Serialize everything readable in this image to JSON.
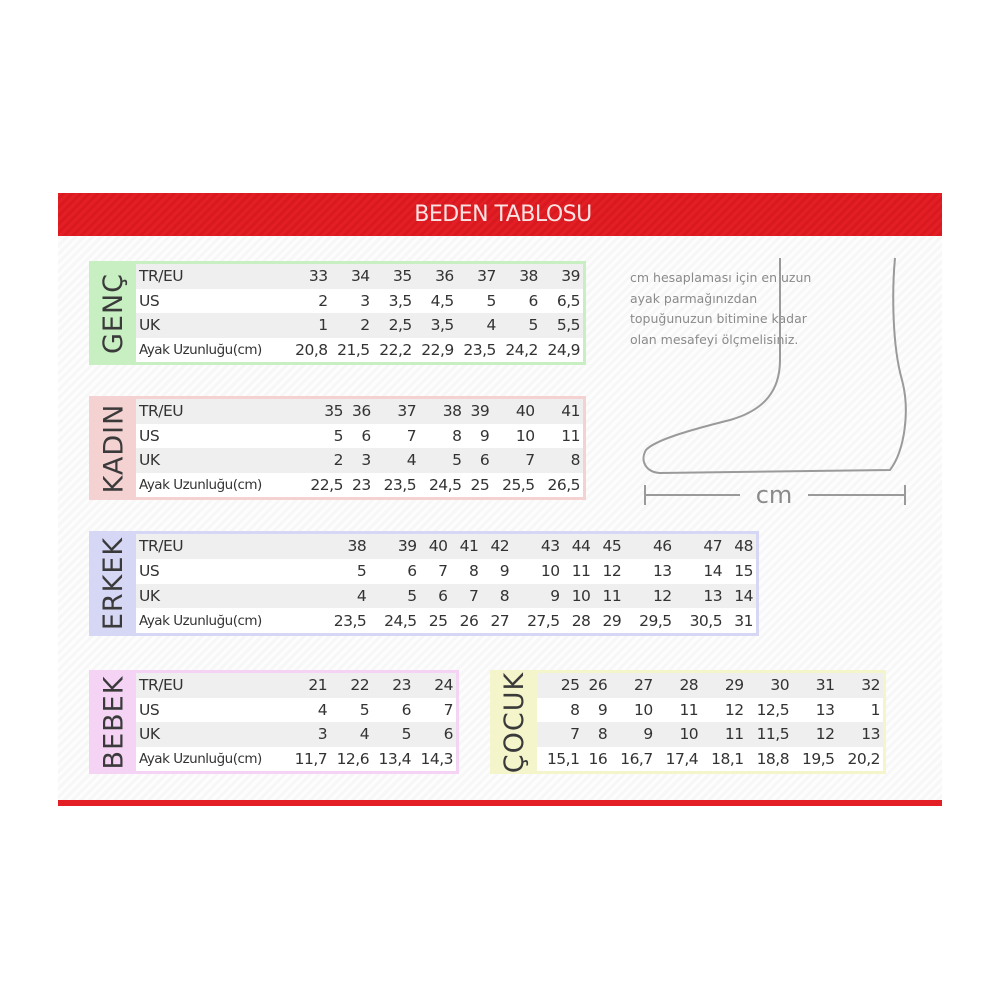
{
  "title": "BEDEN TABLOSU",
  "note": "cm hesaplaması için en uzun ayak parmağınızdan topuğunuzun bitimine kadar olan mesafeyi ölçmelisiniz.",
  "foot_unit": "cm",
  "tables": [
    {
      "id": "genc",
      "label": "GENÇ",
      "color": "#c8efc2",
      "rows": [
        {
          "name": "TR/EU",
          "values": [
            "33",
            "34",
            "35",
            "36",
            "37",
            "38",
            "39"
          ]
        },
        {
          "name": "US",
          "values": [
            "2",
            "3",
            "3,5",
            "4,5",
            "5",
            "6",
            "6,5"
          ]
        },
        {
          "name": "UK",
          "values": [
            "1",
            "2",
            "2,5",
            "3,5",
            "4",
            "5",
            "5,5"
          ]
        },
        {
          "name": "Ayak Uzunluğu(cm)",
          "values": [
            "20,8",
            "21,5",
            "22,2",
            "22,9",
            "23,5",
            "24,2",
            "24,9"
          ]
        }
      ]
    },
    {
      "id": "kadin",
      "label": "KADIN",
      "color": "#f5d2d2",
      "rows": [
        {
          "name": "TR/EU",
          "values": [
            "35",
            "36",
            "37",
            "38",
            "39",
            "40",
            "41"
          ]
        },
        {
          "name": "US",
          "values": [
            "5",
            "6",
            "7",
            "8",
            "9",
            "10",
            "11"
          ]
        },
        {
          "name": "UK",
          "values": [
            "2",
            "3",
            "4",
            "5",
            "6",
            "7",
            "8"
          ]
        },
        {
          "name": "Ayak Uzunluğu(cm)",
          "values": [
            "22,5",
            "23",
            "23,5",
            "24,5",
            "25",
            "25,5",
            "26,5"
          ]
        }
      ]
    },
    {
      "id": "erkek",
      "label": "ERKEK",
      "color": "#d6d6f5",
      "rows": [
        {
          "name": "TR/EU",
          "values": [
            "38",
            "39",
            "40",
            "41",
            "42",
            "43",
            "44",
            "45",
            "46",
            "47",
            "48"
          ]
        },
        {
          "name": "US",
          "values": [
            "5",
            "6",
            "7",
            "8",
            "9",
            "10",
            "11",
            "12",
            "13",
            "14",
            "15"
          ]
        },
        {
          "name": "UK",
          "values": [
            "4",
            "5",
            "6",
            "7",
            "8",
            "9",
            "10",
            "11",
            "12",
            "13",
            "14"
          ]
        },
        {
          "name": "Ayak Uzunluğu(cm)",
          "values": [
            "23,5",
            "24,5",
            "25",
            "26",
            "27",
            "27,5",
            "28",
            "29",
            "29,5",
            "30,5",
            "31"
          ]
        }
      ]
    },
    {
      "id": "bebek",
      "label": "BEBEK",
      "color": "#f4d3f4",
      "rows": [
        {
          "name": "TR/EU",
          "values": [
            "21",
            "22",
            "23",
            "24"
          ]
        },
        {
          "name": "US",
          "values": [
            "4",
            "5",
            "6",
            "7"
          ]
        },
        {
          "name": "UK",
          "values": [
            "3",
            "4",
            "5",
            "6"
          ]
        },
        {
          "name": "Ayak Uzunluğu(cm)",
          "values": [
            "11,7",
            "12,6",
            "13,4",
            "14,3"
          ]
        }
      ]
    },
    {
      "id": "cocuk",
      "label": "ÇOCUK",
      "color": "#f5f5cc",
      "rows": [
        {
          "values": [
            "25",
            "26",
            "27",
            "28",
            "29",
            "30",
            "31",
            "32"
          ]
        },
        {
          "values": [
            "8",
            "9",
            "10",
            "11",
            "12",
            "12,5",
            "13",
            "1"
          ]
        },
        {
          "values": [
            "7",
            "8",
            "9",
            "10",
            "11",
            "11,5",
            "12",
            "13"
          ]
        },
        {
          "values": [
            "15,1",
            "16",
            "16,7",
            "17,4",
            "18,1",
            "18,8",
            "19,5",
            "20,2"
          ]
        }
      ]
    }
  ]
}
